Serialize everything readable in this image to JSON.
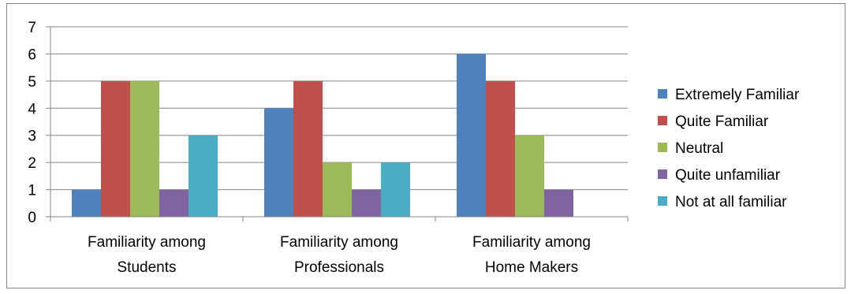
{
  "chart_data": {
    "type": "bar",
    "categories": [
      [
        "Familiarity among",
        "Students"
      ],
      [
        "Familiarity among",
        "Professionals"
      ],
      [
        "Familiarity among",
        "Home Makers"
      ]
    ],
    "series": [
      {
        "name": "Extremely Familiar",
        "color": "#4F81BD",
        "values": [
          1,
          4,
          6
        ]
      },
      {
        "name": "Quite Familiar",
        "color": "#C0504D",
        "values": [
          5,
          5,
          5
        ]
      },
      {
        "name": "Neutral",
        "color": "#9BBB59",
        "values": [
          5,
          2,
          3
        ]
      },
      {
        "name": "Quite unfamiliar",
        "color": "#8064A2",
        "values": [
          1,
          1,
          1
        ]
      },
      {
        "name": "Not at all familiar",
        "color": "#4BACC6",
        "values": [
          3,
          2,
          null
        ]
      }
    ],
    "ylim": [
      0,
      7
    ],
    "yticks": [
      0,
      1,
      2,
      3,
      4,
      5,
      6,
      7
    ],
    "grid": true,
    "legend_position": "right",
    "title": "",
    "xlabel": "",
    "ylabel": ""
  }
}
